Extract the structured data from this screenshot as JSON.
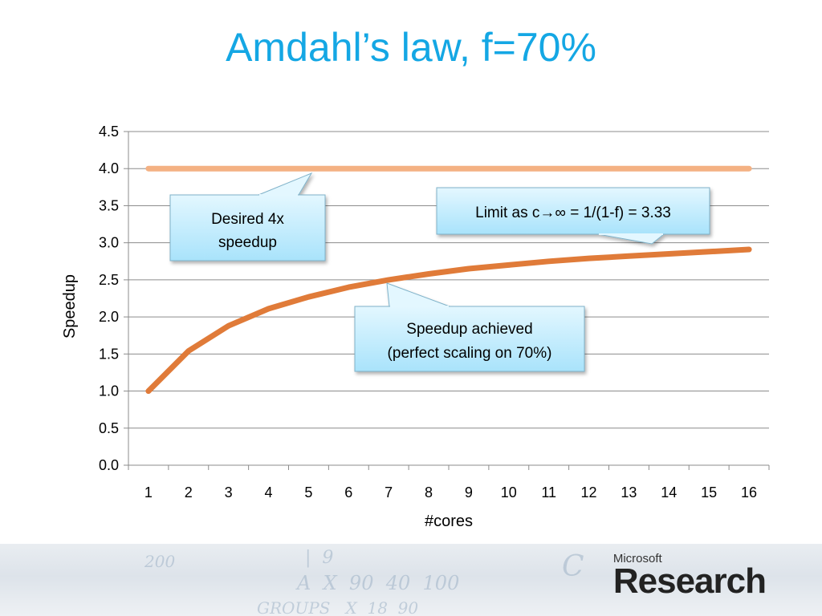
{
  "slide": {
    "title": "Amdahl’s law, f=70%"
  },
  "chart_data": {
    "type": "line",
    "title": "",
    "xlabel": "#cores",
    "ylabel": "Speedup",
    "categories": [
      "1",
      "2",
      "3",
      "4",
      "5",
      "6",
      "7",
      "8",
      "9",
      "10",
      "11",
      "12",
      "13",
      "14",
      "15",
      "16"
    ],
    "ylim": [
      0,
      4.5
    ],
    "yticks": [
      "0.0",
      "0.5",
      "1.0",
      "1.5",
      "2.0",
      "2.5",
      "3.0",
      "3.5",
      "4.0",
      "4.5"
    ],
    "grid": true,
    "legend": "none",
    "series": [
      {
        "values": [
          4,
          4,
          4,
          4,
          4,
          4,
          4,
          4,
          4,
          4,
          4,
          4,
          4,
          4,
          4,
          4
        ],
        "color": "#f4b183"
      },
      {
        "values": [
          1.0,
          1.54,
          1.88,
          2.11,
          2.27,
          2.4,
          2.5,
          2.58,
          2.65,
          2.7,
          2.75,
          2.79,
          2.82,
          2.85,
          2.88,
          2.91
        ],
        "color": "#e07b39"
      }
    ],
    "annotations": [
      {
        "lines": [
          "Desired 4x",
          "speedup"
        ]
      },
      {
        "lines": [
          "Limit as c→∞ = 1/(1-f) = 3.33"
        ]
      },
      {
        "lines": [
          "Speedup achieved",
          "(perfect scaling on 70%)"
        ]
      }
    ]
  },
  "footer": {
    "brand_small": "Microsoft",
    "brand_big": "Research"
  },
  "colors": {
    "title": "#14a7e4",
    "callout_fill": "#c6efff",
    "callout_stroke": "#7fb2c9"
  }
}
